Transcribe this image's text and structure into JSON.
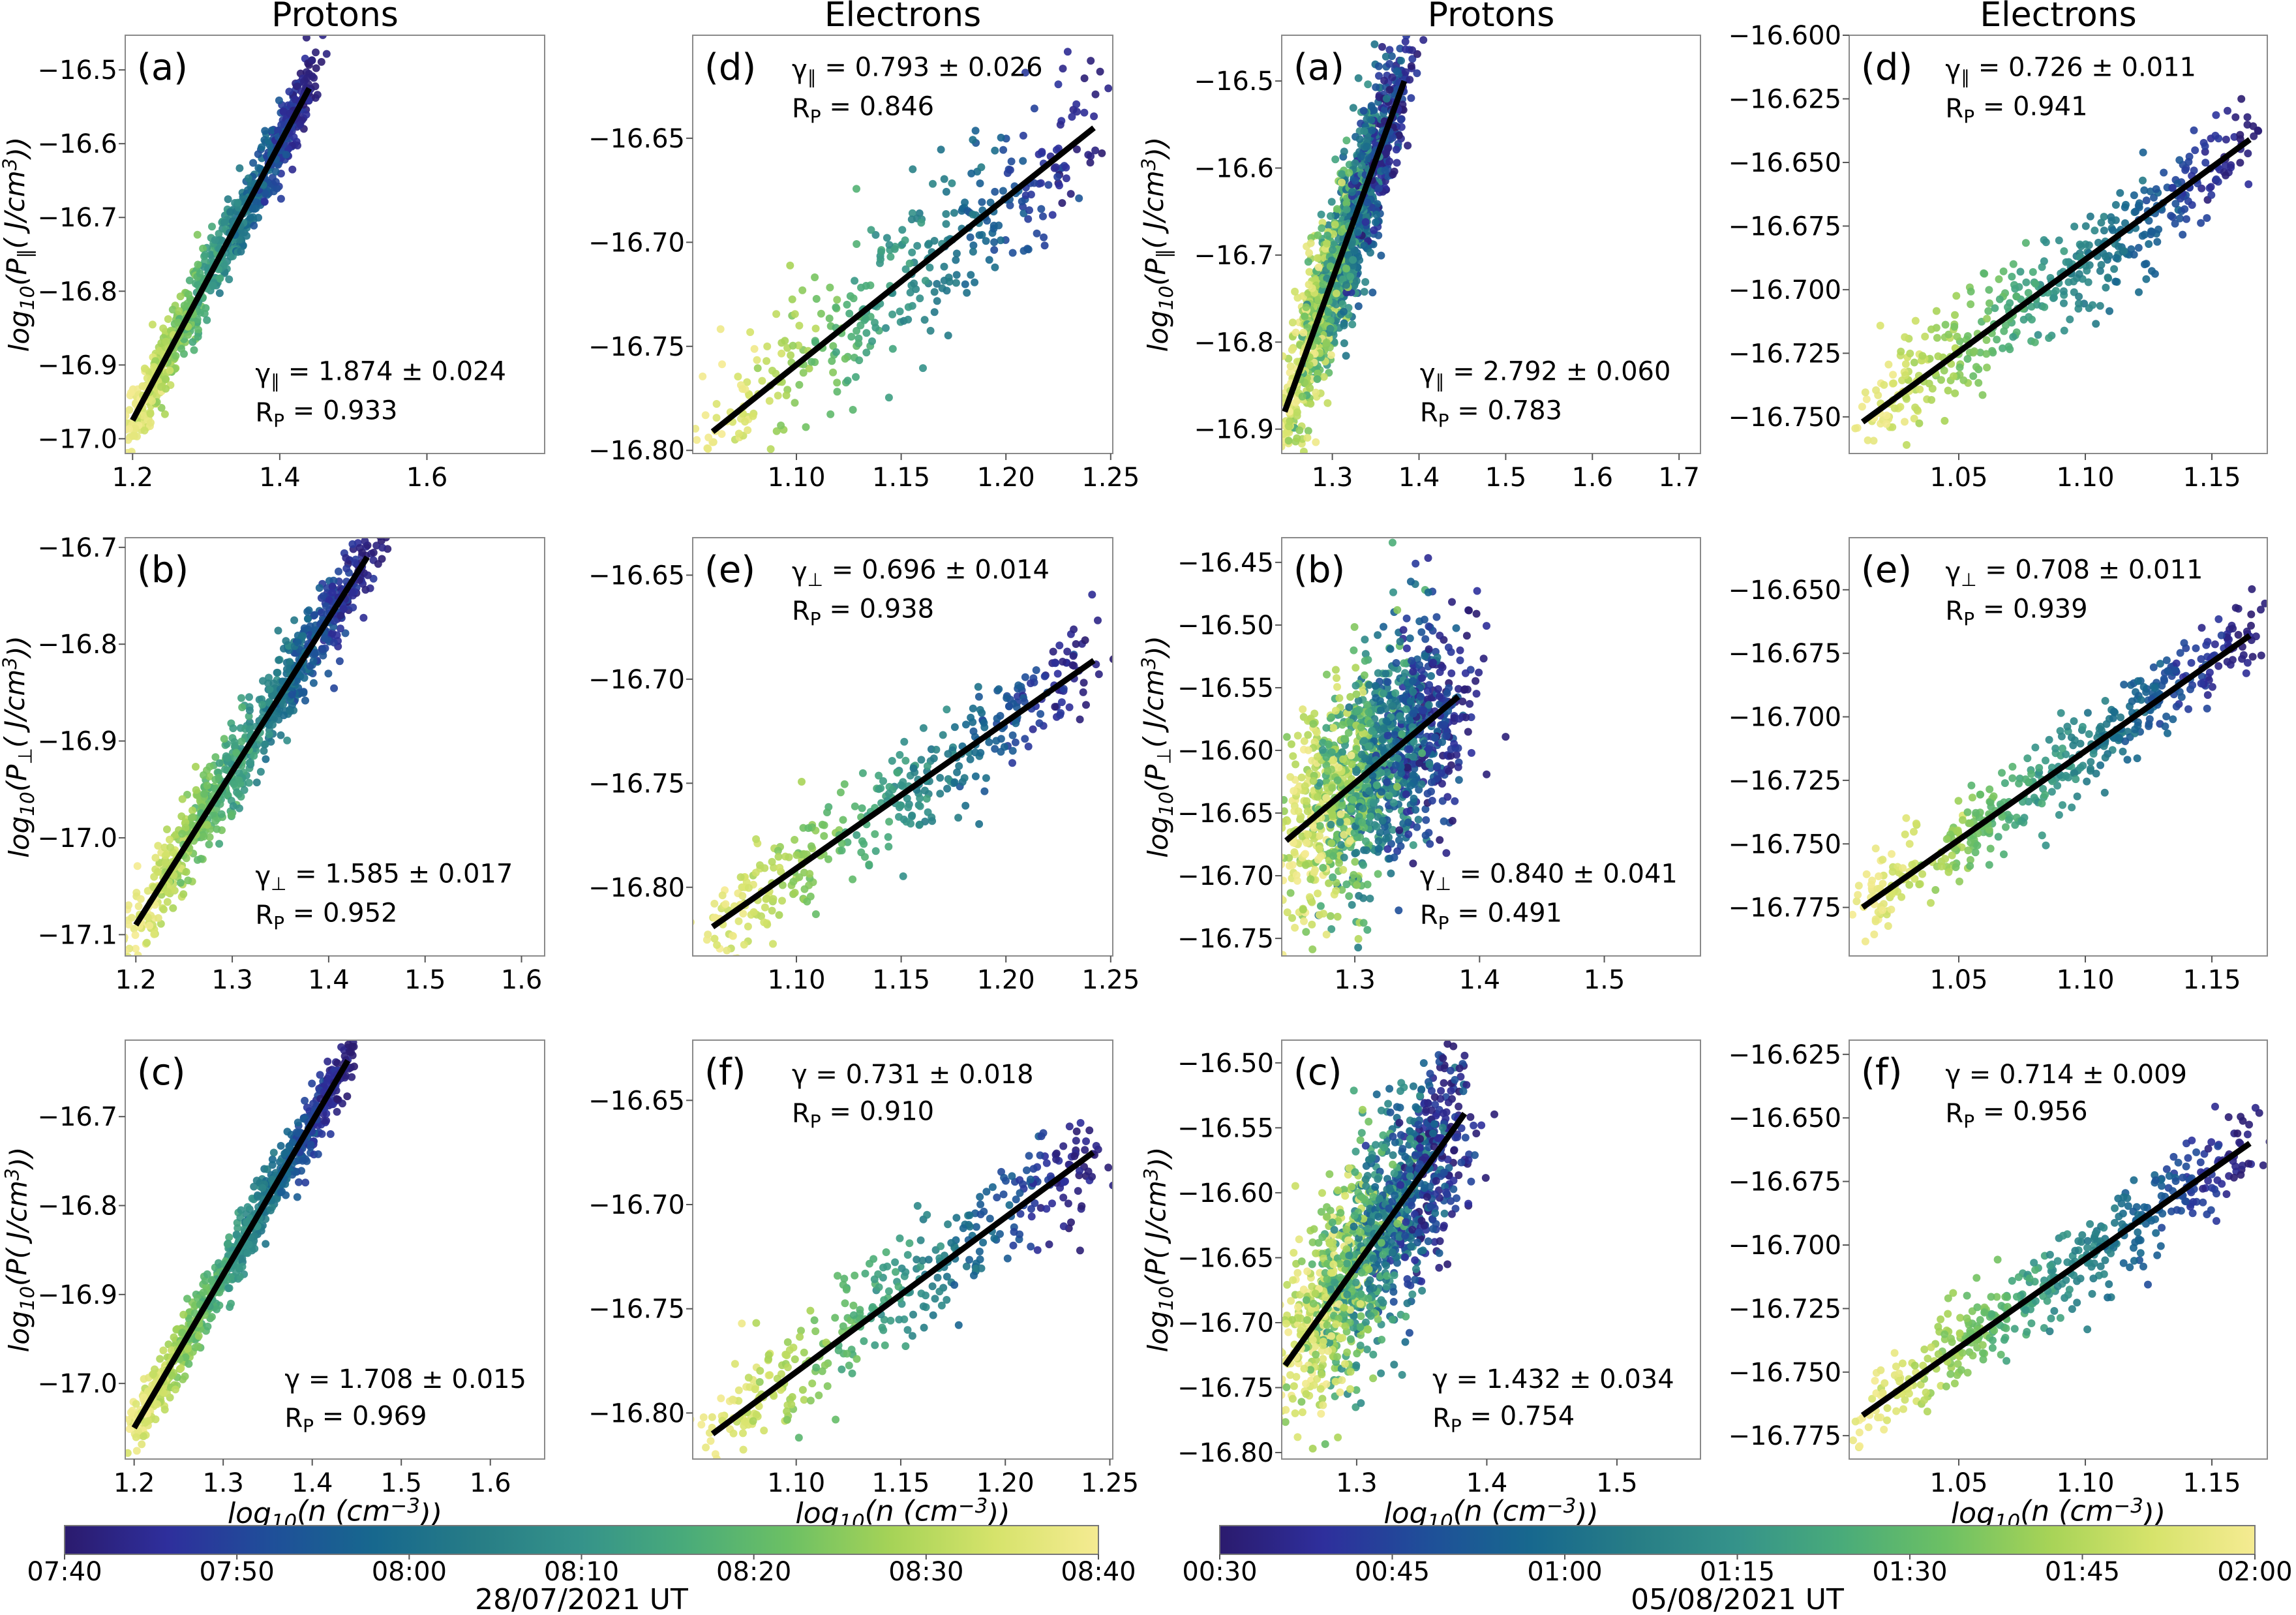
{
  "colormap": [
    "#2b1b6e",
    "#2e2f9c",
    "#1f4f99",
    "#17688e",
    "#277d86",
    "#35938a",
    "#49ab7a",
    "#6cc064",
    "#a6d357",
    "#d6e36b",
    "#f5eb92"
  ],
  "fit_line_color": "#000000",
  "chart_data": {
    "type": "scatter",
    "panels": [
      {
        "title": "Protons",
        "label": "(a)",
        "xlim": [
          1.19,
          1.76
        ],
        "ylim": [
          -17.02,
          -16.453
        ],
        "xticks": [
          "1.2",
          "1.4",
          "1.6"
        ],
        "yticks": [
          "−17.0",
          "−16.9",
          "−16.8",
          "−16.7",
          "−16.6",
          "−16.5"
        ],
        "xlabel": "",
        "ylabel": "log_{10}(P_{∥}( J/cm^{3}))",
        "fit": {
          "x": [
            1.2,
            1.44
          ],
          "y": [
            -16.975,
            -16.525
          ]
        },
        "gamma": "γ_{∥} = 1.874 ± 0.024",
        "rp": "R_{P} = 0.933",
        "scatter": {
          "n": 800,
          "x_range": [
            1.2,
            1.44
          ],
          "y_spread": 0.025,
          "x_jitter": 0.012,
          "seed": 11
        }
      },
      {
        "title": "",
        "label": "(b)",
        "xlim": [
          1.189,
          1.624
        ],
        "ylim": [
          -17.122,
          -16.69
        ],
        "xticks": [
          "1.2",
          "1.3",
          "1.4",
          "1.5",
          "1.6"
        ],
        "yticks": [
          "−17.1",
          "−17.0",
          "−16.9",
          "−16.8",
          "−16.7"
        ],
        "xlabel": "",
        "ylabel": "log_{10}(P_{⊥}( J/cm^{3}))",
        "fit": {
          "x": [
            1.2,
            1.44
          ],
          "y": [
            -17.09,
            -16.71
          ]
        },
        "gamma": "γ_{⊥} = 1.585 ± 0.017",
        "rp": "R_{P} = 0.952",
        "scatter": {
          "n": 800,
          "x_range": [
            1.2,
            1.44
          ],
          "y_spread": 0.022,
          "x_jitter": 0.012,
          "seed": 12
        }
      },
      {
        "title": "",
        "label": "(c)",
        "xlim": [
          1.19,
          1.661
        ],
        "ylim": [
          -17.085,
          -16.614
        ],
        "xticks": [
          "1.2",
          "1.3",
          "1.4",
          "1.5",
          "1.6"
        ],
        "yticks": [
          "−17.0",
          "−16.9",
          "−16.8",
          "−16.7"
        ],
        "xlabel": "log_{10}(n (cm^{−3}))",
        "ylabel": "log_{10}(P( J/cm^{3}))",
        "fit": {
          "x": [
            1.2,
            1.44
          ],
          "y": [
            -17.05,
            -16.637
          ]
        },
        "gamma": "γ = 1.708 ± 0.015",
        "rp": "R_{P} = 0.969",
        "scatter": {
          "n": 800,
          "x_range": [
            1.2,
            1.44
          ],
          "y_spread": 0.017,
          "x_jitter": 0.01,
          "seed": 13
        }
      },
      {
        "title": "Electrons",
        "label": "(d)",
        "xlim": [
          1.0505,
          1.251
        ],
        "ylim": [
          -16.8015,
          -16.6005
        ],
        "xticks": [
          "1.10",
          "1.15",
          "1.20",
          "1.25"
        ],
        "yticks": [
          "−16.80",
          "−16.75",
          "−16.70",
          "−16.65"
        ],
        "xlabel": "",
        "ylabel": "",
        "fit": {
          "x": [
            1.06,
            1.242
          ],
          "y": [
            -16.791,
            -16.645
          ]
        },
        "gamma": "γ_{∥} = 0.793 ± 0.026",
        "rp": "R_{P} = 0.846",
        "scatter": {
          "n": 380,
          "x_range": [
            1.06,
            1.242
          ],
          "y_spread": 0.02,
          "x_jitter": 0.008,
          "seed": 21
        }
      },
      {
        "title": "",
        "label": "(e)",
        "xlim": [
          1.0505,
          1.251
        ],
        "ylim": [
          -16.833,
          -16.632
        ],
        "xticks": [
          "1.10",
          "1.15",
          "1.20",
          "1.25"
        ],
        "yticks": [
          "−16.80",
          "−16.75",
          "−16.70",
          "−16.65"
        ],
        "xlabel": "",
        "ylabel": "",
        "fit": {
          "x": [
            1.06,
            1.242
          ],
          "y": [
            -16.819,
            -16.691
          ]
        },
        "gamma": "γ_{⊥} = 0.696 ± 0.014",
        "rp": "R_{P} = 0.938",
        "scatter": {
          "n": 380,
          "x_range": [
            1.06,
            1.242
          ],
          "y_spread": 0.012,
          "x_jitter": 0.008,
          "seed": 22
        }
      },
      {
        "title": "",
        "label": "(f)",
        "xlim": [
          1.0505,
          1.2514
        ],
        "ylim": [
          -16.8221,
          -16.6211
        ],
        "xticks": [
          "1.10",
          "1.15",
          "1.20",
          "1.25"
        ],
        "yticks": [
          "−16.80",
          "−16.75",
          "−16.70",
          "−16.65"
        ],
        "xlabel": "log_{10}(n (cm^{−3}))",
        "ylabel": "",
        "fit": {
          "x": [
            1.06,
            1.242
          ],
          "y": [
            -16.81,
            -16.675
          ]
        },
        "gamma": "γ = 0.731 ± 0.018",
        "rp": "R_{P} = 0.910",
        "scatter": {
          "n": 380,
          "x_range": [
            1.06,
            1.242
          ],
          "y_spread": 0.013,
          "x_jitter": 0.008,
          "seed": 23
        }
      },
      {
        "title": "Protons",
        "label": "(a)",
        "xlim": [
          1.2416,
          1.7247
        ],
        "ylim": [
          -16.928,
          -16.4474
        ],
        "xticks": [
          "1.3",
          "1.4",
          "1.5",
          "1.6",
          "1.7"
        ],
        "yticks": [
          "−16.9",
          "−16.8",
          "−16.7",
          "−16.6",
          "−16.5"
        ],
        "xlabel": "",
        "ylabel": "log_{10}(P_{∥}( J/cm^{3}))",
        "fit": {
          "x": [
            1.245,
            1.383
          ],
          "y": [
            -16.88,
            -16.5
          ]
        },
        "gamma": "γ_{∥} = 2.792 ± 0.060",
        "rp": "R_{P} = 0.783",
        "scatter": {
          "n": 1300,
          "x_range": [
            1.26,
            1.37
          ],
          "y_spread": 0.045,
          "x_jitter": 0.018,
          "seed": 31
        }
      },
      {
        "title": "",
        "label": "(b)",
        "xlim": [
          1.2414,
          1.5771
        ],
        "ylim": [
          -16.764,
          -16.4303
        ],
        "xticks": [
          "1.3",
          "1.4",
          "1.5"
        ],
        "yticks": [
          "−16.75",
          "−16.70",
          "−16.65",
          "−16.60",
          "−16.55",
          "−16.50",
          "−16.45"
        ],
        "xlabel": "",
        "ylabel": "log_{10}(P_{⊥}( J/cm^{3}))",
        "fit": {
          "x": [
            1.245,
            1.383
          ],
          "y": [
            -16.672,
            -16.557
          ]
        },
        "gamma": "γ_{⊥} = 0.840 ± 0.041",
        "rp": "R_{P} = 0.491",
        "scatter": {
          "n": 1300,
          "x_range": [
            1.26,
            1.37
          ],
          "y_spread": 0.045,
          "x_jitter": 0.018,
          "seed": 32
        }
      },
      {
        "title": "",
        "label": "(c)",
        "xlim": [
          1.2424,
          1.5642
        ],
        "ylim": [
          -16.805,
          -16.4825
        ],
        "xticks": [
          "1.3",
          "1.4",
          "1.5"
        ],
        "yticks": [
          "−16.80",
          "−16.75",
          "−16.70",
          "−16.65",
          "−16.60",
          "−16.55",
          "−16.50"
        ],
        "xlabel": "log_{10}(n (cm^{−3}))",
        "ylabel": "log_{10}(P( J/cm^{3}))",
        "fit": {
          "x": [
            1.245,
            1.383
          ],
          "y": [
            -16.733,
            -16.539
          ]
        },
        "gamma": "γ = 1.432 ± 0.034",
        "rp": "R_{P} = 0.754",
        "scatter": {
          "n": 1300,
          "x_range": [
            1.26,
            1.37
          ],
          "y_spread": 0.04,
          "x_jitter": 0.018,
          "seed": 33
        }
      },
      {
        "title": "Electrons",
        "label": "(d)",
        "xlim": [
          1.0067,
          1.1719
        ],
        "ylim": [
          -16.7644,
          -16.6
        ],
        "xticks": [
          "1.05",
          "1.10",
          "1.15"
        ],
        "yticks": [
          "−16.750",
          "−16.725",
          "−16.700",
          "−16.675",
          "−16.650",
          "−16.625",
          "−16.600"
        ],
        "xlabel": "",
        "ylabel": "",
        "fit": {
          "x": [
            1.012,
            1.165
          ],
          "y": [
            -16.752,
            -16.641
          ]
        },
        "gamma": "γ_{∥} = 0.726 ± 0.011",
        "rp": "R_{P} = 0.941",
        "scatter": {
          "n": 450,
          "x_range": [
            1.012,
            1.165
          ],
          "y_spread": 0.01,
          "x_jitter": 0.006,
          "seed": 41
        }
      },
      {
        "title": "",
        "label": "(e)",
        "xlim": [
          1.0067,
          1.1719
        ],
        "ylim": [
          -16.7941,
          -16.6295
        ],
        "xticks": [
          "1.05",
          "1.10",
          "1.15"
        ],
        "yticks": [
          "−16.775",
          "−16.750",
          "−16.725",
          "−16.700",
          "−16.675",
          "−16.650"
        ],
        "xlabel": "",
        "ylabel": "",
        "fit": {
          "x": [
            1.012,
            1.165
          ],
          "y": [
            -16.775,
            -16.668
          ]
        },
        "gamma": "γ_{⊥} = 0.708 ± 0.011",
        "rp": "R_{P} = 0.939",
        "scatter": {
          "n": 450,
          "x_range": [
            1.012,
            1.165
          ],
          "y_spread": 0.008,
          "x_jitter": 0.006,
          "seed": 42
        }
      },
      {
        "title": "",
        "label": "(f)",
        "xlim": [
          1.0067,
          1.1719
        ],
        "ylim": [
          -16.7842,
          -16.6194
        ],
        "xticks": [
          "1.05",
          "1.10",
          "1.15"
        ],
        "yticks": [
          "−16.775",
          "−16.750",
          "−16.725",
          "−16.700",
          "−16.675",
          "−16.650",
          "−16.625"
        ],
        "xlabel": "log_{10}(n (cm^{−3}))",
        "ylabel": "",
        "fit": {
          "x": [
            1.012,
            1.165
          ],
          "y": [
            -16.767,
            -16.66
          ]
        },
        "gamma": "γ = 0.714 ± 0.009",
        "rp": "R_{P} = 0.956",
        "scatter": {
          "n": 450,
          "x_range": [
            1.012,
            1.165
          ],
          "y_spread": 0.008,
          "x_jitter": 0.006,
          "seed": 43
        }
      }
    ],
    "colorbars": [
      {
        "ticks": [
          "07:40",
          "07:50",
          "08:00",
          "08:10",
          "08:20",
          "08:30",
          "08:40"
        ],
        "label": "28/07/2021 UT"
      },
      {
        "ticks": [
          "00:30",
          "00:45",
          "01:00",
          "01:15",
          "01:30",
          "01:45",
          "02:00"
        ],
        "label": "05/08/2021 UT"
      }
    ]
  }
}
